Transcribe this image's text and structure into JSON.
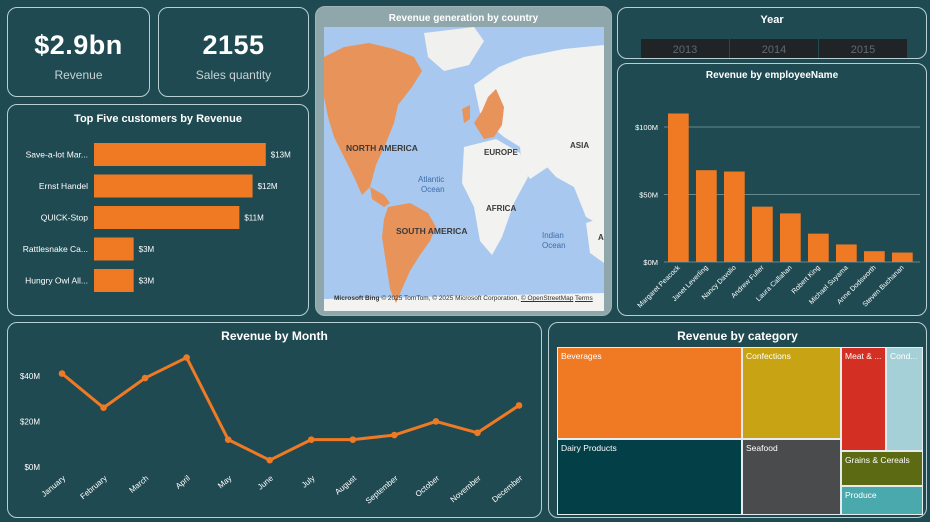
{
  "kpis": {
    "revenue": {
      "value": "$2.9bn",
      "label": "Revenue"
    },
    "sales_quantity": {
      "value": "2155",
      "label": "Sales quantity"
    }
  },
  "top_customers": {
    "title": "Top Five customers  by Revenue",
    "bar_color": "#f07a24",
    "chart_data": {
      "type": "bar",
      "orientation": "horizontal",
      "categories": [
        "Save-a-lot Mar...",
        "Ernst Handel",
        "QUICK-Stop",
        "Rattlesnake Ca...",
        "Hungry Owl All..."
      ],
      "values": [
        13,
        12,
        11,
        3,
        3
      ],
      "value_labels": [
        "$13M",
        "$12M",
        "$11M",
        "$3M",
        "$3M"
      ],
      "xmax": 14
    }
  },
  "map": {
    "title": "Revenue generation by country",
    "labels": {
      "north_america": "NORTH AMERICA",
      "south_america": "SOUTH AMERICA",
      "europe": "EUROPE",
      "asia": "ASIA",
      "africa": "AFRICA",
      "atlantic": "Atlantic",
      "ocean1": "Ocean",
      "indian": "Indian",
      "ocean2": "Ocean",
      "au": "AU"
    },
    "attribution": {
      "brand": "Microsoft Bing",
      "text": "© 2025 TomTom, © 2025 Microsoft Corporation,",
      "osm": "© OpenStreetMap",
      "terms": "Terms"
    },
    "highlight_color": "#e8935a"
  },
  "year_slicer": {
    "title": "Year",
    "options": [
      "2013",
      "2014",
      "2015"
    ]
  },
  "employee_revenue": {
    "title": "Revenue by employeeName",
    "bar_color": "#f07a24",
    "chart_data": {
      "type": "bar",
      "categories": [
        "Margaret Peacock",
        "Janet Leverling",
        "Nancy Davolio",
        "Andrew Fuller",
        "Laura Callahan",
        "Robert King",
        "Michael Suyama",
        "Anne Dodsworth",
        "Steven Buchanan"
      ],
      "values": [
        110,
        68,
        67,
        41,
        36,
        21,
        13,
        8,
        7
      ],
      "yticks": [
        0,
        50,
        100
      ],
      "ytick_labels": [
        "$0M",
        "$50M",
        "$100M"
      ],
      "ylim": [
        0,
        120
      ]
    }
  },
  "monthly_revenue": {
    "title": "Revenue by Month",
    "line_color": "#f07a24",
    "chart_data": {
      "type": "line",
      "categories": [
        "January",
        "February",
        "March",
        "April",
        "May",
        "June",
        "July",
        "August",
        "September",
        "October",
        "November",
        "December"
      ],
      "values": [
        41,
        26,
        39,
        48,
        12,
        3,
        12,
        12,
        14,
        20,
        15,
        27
      ],
      "yticks": [
        0,
        20,
        40
      ],
      "ytick_labels": [
        "$0M",
        "$20M",
        "$40M"
      ],
      "ylim": [
        0,
        50
      ]
    }
  },
  "category_revenue": {
    "title": "Revenue by category",
    "chart_data": {
      "type": "treemap",
      "tiles": [
        {
          "label": "Beverages",
          "color": "#f07a24"
        },
        {
          "label": "Dairy Products",
          "color": "#033f47"
        },
        {
          "label": "Confections",
          "color": "#c8a414"
        },
        {
          "label": "Seafood",
          "color": "#4a4b4d"
        },
        {
          "label": "Meat & ...",
          "color": "#d42f23"
        },
        {
          "label": "Cond...",
          "color": "#a6d0d8"
        },
        {
          "label": "Grains & Cereals",
          "color": "#5c6a14"
        },
        {
          "label": "Produce",
          "color": "#4aa9ad"
        }
      ]
    }
  }
}
